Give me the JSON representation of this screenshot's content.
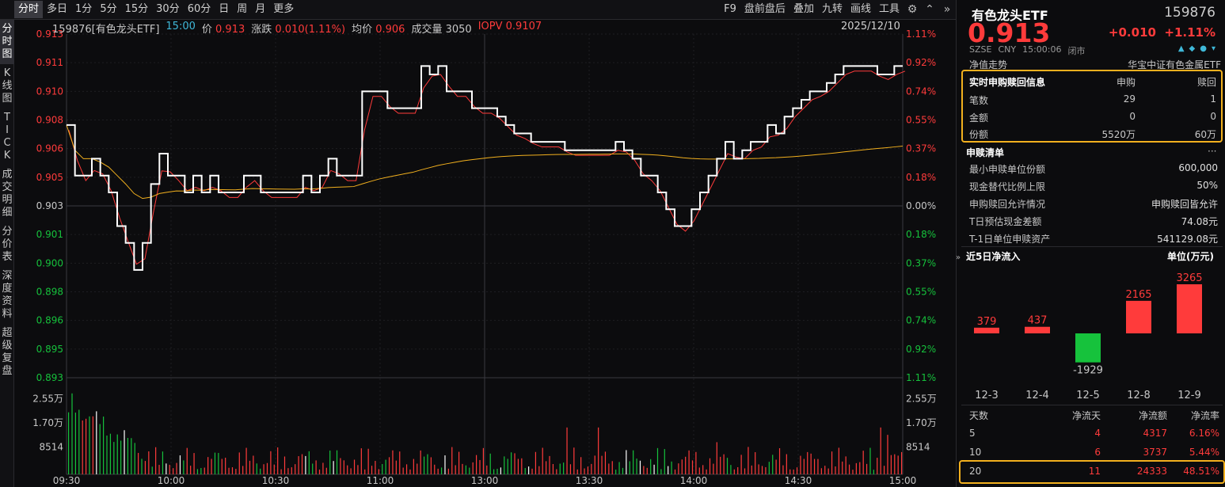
{
  "toolbar": {
    "tabs": [
      "分时",
      "多日",
      "1分",
      "5分",
      "15分",
      "30分",
      "60分",
      "日",
      "周",
      "月",
      "更多"
    ],
    "right": [
      "F9",
      "盘前盘后",
      "叠加",
      "九转",
      "画线",
      "工具"
    ],
    "icons": [
      "gear-icon",
      "up-icon",
      "collapse-icon"
    ]
  },
  "vtabs": [
    {
      "label": "分\n时\n图",
      "active": true
    },
    {
      "label": "K\n线\n图",
      "active": false
    },
    {
      "label": "T\nI\nC\nK",
      "active": false
    },
    {
      "label": "成\n交\n明\n细",
      "active": false
    },
    {
      "label": "分\n价\n表",
      "active": false
    },
    {
      "label": "深\n度\n资\n料",
      "active": false
    },
    {
      "label": "超\n级\n复\n盘",
      "active": false
    }
  ],
  "info": {
    "code_name": "159876[有色龙头ETF]",
    "time": "15:00",
    "price_label": "价",
    "price": "0.913",
    "change_label": "涨跌",
    "change": "0.010(1.11%)",
    "avg_label": "均价",
    "avg": "0.906",
    "vol_label": "成交量",
    "vol": "3050",
    "iopv_label": "IOPV",
    "iopv": "0.9107",
    "date": "2025/12/10"
  },
  "chart_data": {
    "type": "line",
    "prev_close": 0.903,
    "ylim": [
      0.8928,
      0.9132
    ],
    "y_ticks_left": [
      "0.913",
      "0.911",
      "0.910",
      "0.908",
      "0.906",
      "0.905",
      "0.903",
      "0.901",
      "0.900",
      "0.898",
      "0.896",
      "0.895",
      "0.893"
    ],
    "y_ticks_right": [
      "1.11%",
      "0.92%",
      "0.74%",
      "0.55%",
      "0.37%",
      "0.18%",
      "0.00%",
      "0.18%",
      "0.37%",
      "0.55%",
      "0.74%",
      "0.92%",
      "1.11%"
    ],
    "x_ticks": [
      "09:30",
      "10:00",
      "10:30",
      "11:00",
      "13:00",
      "13:30",
      "14:00",
      "14:30",
      "15:00"
    ],
    "vol_ticks": [
      "2.55万",
      "1.70万",
      "8514"
    ],
    "vol_max": 34000,
    "series": [
      {
        "name": "价",
        "color": "#ffffff",
        "values": [
          0.9078,
          0.9048,
          0.9048,
          0.9058,
          0.9048,
          0.9038,
          0.9018,
          0.9008,
          0.8992,
          0.9008,
          0.9043,
          0.9061,
          0.9048,
          0.9048,
          0.9038,
          0.9048,
          0.9038,
          0.9048,
          0.9038,
          0.9038,
          0.9038,
          0.9048,
          0.9048,
          0.9038,
          0.9038,
          0.9038,
          0.9038,
          0.9038,
          0.9048,
          0.9038,
          0.9048,
          0.9058,
          0.9048,
          0.9048,
          0.9048,
          0.9098,
          0.9098,
          0.9098,
          0.9088,
          0.9088,
          0.9088,
          0.9088,
          0.9113,
          0.9108,
          0.9113,
          0.9098,
          0.9098,
          0.9098,
          0.9088,
          0.9088,
          0.9088,
          0.9083,
          0.9078,
          0.9073,
          0.9073,
          0.9068,
          0.9068,
          0.9068,
          0.9068,
          0.9063,
          0.9063,
          0.9063,
          0.9063,
          0.9063,
          0.9063,
          0.9068,
          0.9063,
          0.9058,
          0.9048,
          0.9048,
          0.9038,
          0.9028,
          0.9018,
          0.9018,
          0.9028,
          0.9038,
          0.9048,
          0.9058,
          0.9068,
          0.9058,
          0.9063,
          0.9068,
          0.9068,
          0.9078,
          0.9073,
          0.9083,
          0.9088,
          0.9093,
          0.9098,
          0.9098,
          0.9103,
          0.9108,
          0.9113,
          0.9113,
          0.9113,
          0.9113,
          0.9108,
          0.9108,
          0.9113,
          0.9113
        ],
        "_note": "values sampled evenly across the 240-minute session"
      },
      {
        "name": "IOPV",
        "color": "#ff3b3b"
      },
      {
        "name": "均价",
        "color": "#f2b01e"
      }
    ]
  },
  "quote": {
    "name": "有色龙头ETF",
    "code": "159876",
    "price": "0.913",
    "change": "+0.010",
    "change_pct": "+1.11%",
    "meta": [
      "SZSE",
      "CNY",
      "15:00:06",
      "闭市"
    ],
    "nav_label": "净值走势",
    "nav_right": "华宝中证有色金属ETF"
  },
  "realtime": {
    "header": [
      "实时申购赎回信息",
      "申购",
      "赎回"
    ],
    "rows": [
      [
        "笔数",
        "29",
        "1"
      ],
      [
        "金额",
        "0",
        "0"
      ],
      [
        "份额",
        "5520万",
        "60万"
      ]
    ]
  },
  "list": {
    "title": "申赎清单",
    "more": "···",
    "rows": [
      [
        "最小申赎单位份额",
        "600,000"
      ],
      [
        "现金替代比例上限",
        "50%"
      ],
      [
        "申购赎回允许情况",
        "申购赎回皆允许"
      ],
      [
        "T日预估现金差额",
        "74.08元"
      ],
      [
        "T-1日单位申赎资产",
        "541129.08元"
      ]
    ]
  },
  "flow": {
    "title": "近5日净流入",
    "unit": "单位(万元)",
    "bars": [
      {
        "date": "12-3",
        "value": 379
      },
      {
        "date": "12-4",
        "value": 437
      },
      {
        "date": "12-5",
        "value": -1929
      },
      {
        "date": "12-8",
        "value": 2165
      },
      {
        "date": "12-9",
        "value": 3265
      }
    ],
    "pos_color": "#ff3b3b",
    "neg_color": "#16c23c"
  },
  "stats": {
    "header": [
      "天数",
      "净流天",
      "净流额",
      "净流率"
    ],
    "rows": [
      [
        "5",
        "4",
        "4317",
        "6.16%"
      ],
      [
        "10",
        "6",
        "3737",
        "5.44%"
      ],
      [
        "20",
        "11",
        "24333",
        "48.51%"
      ]
    ]
  }
}
